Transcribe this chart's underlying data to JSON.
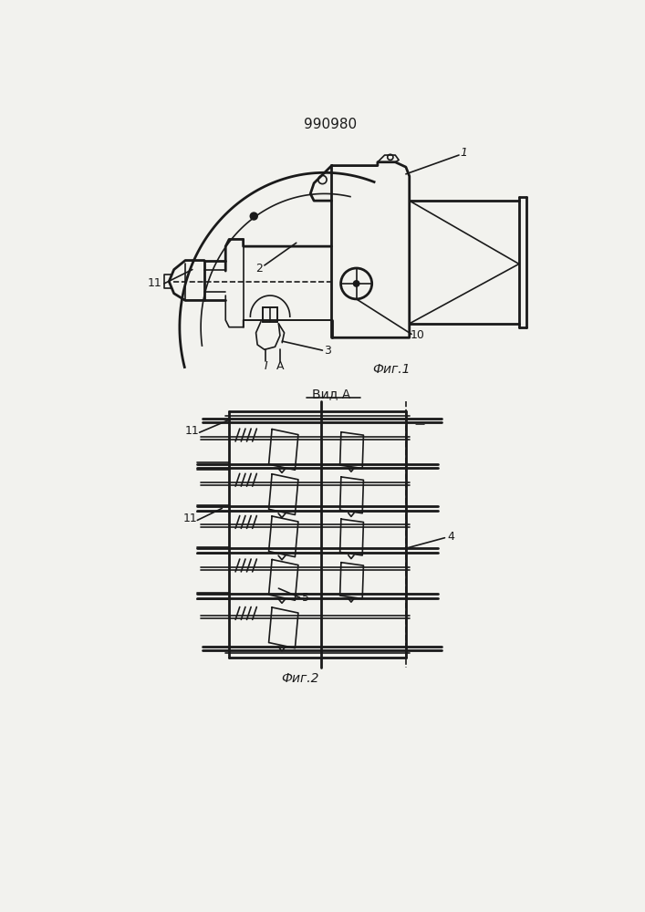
{
  "title": "990980",
  "bg_color": "#f2f2ee",
  "line_color": "#1a1a1a",
  "fig1_caption": "Фиг.1",
  "fig2_caption": "Фиг.2",
  "vid_a_label": "Вид А"
}
